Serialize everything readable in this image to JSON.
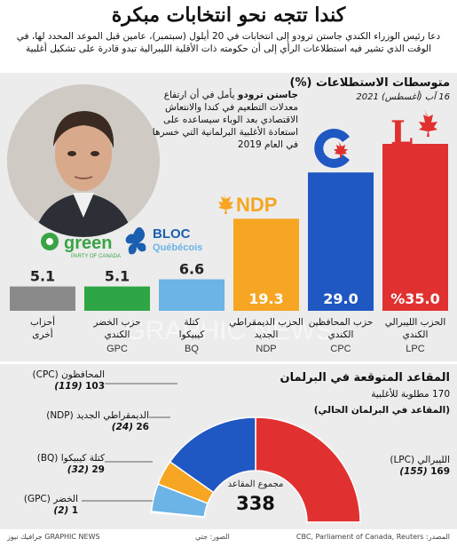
{
  "header": {
    "title": "كندا تتجه نحو انتخابات مبكرة",
    "subtitle": "دعا رئيس الوزراء الكندي جاستن ترودو إلى انتخابات في 20 أيلول (سبتمبر)، عامين قبل الموعد المحدد لها، في الوقت الذي تشير فيه استطلاعات الرأي إلى أن حكومته ذات الأقلية الليبرالية تبدو قادرة على تشكيل أغلبية"
  },
  "polls": {
    "section_title": "متوسطات الاستطلاعات (%)",
    "date_label": "16 آب (أغسطس) 2021",
    "quote_name": "جاستن ترودو",
    "quote_text": "يأمل في أن ارتفاع معدلات التطعيم في كندا والانتعاش الاقتصادي بعد الوباء سيساعده على استعادة الأغلبية البرلمانية التي خسرها في العام 2019",
    "watermark": "GRAPHIC NEWS"
  },
  "logos": {
    "ndp": "NDP",
    "bloc_line1": "BLOC",
    "bloc_line2": "Québécois",
    "green": "green",
    "green_sub": "PARTY OF CANADA",
    "lpc": "L"
  },
  "chart_data": [
    {
      "type": "bar",
      "title": "متوسطات الاستطلاعات (%)",
      "subtitle": "16 آب (أغسطس) 2021",
      "categories": [
        "LPC",
        "CPC",
        "NDP",
        "BQ",
        "GPC",
        "أحزاب أخرى"
      ],
      "category_names": [
        "الحزب الليبرالي الكندي",
        "حزب المحافظين الكندي",
        "الحزب الديمقراطي الجديد",
        "كتلة كيبيكوا",
        "حزب الخضر الكندي",
        "أحزاب أخرى"
      ],
      "category_codes": [
        "LPC",
        "CPC",
        "NDP",
        "BQ",
        "GPC",
        ""
      ],
      "value_labels": [
        "%35.0",
        "29.0",
        "19.3",
        "6.6",
        "5.1",
        "5.1"
      ],
      "values": [
        35.0,
        29.0,
        19.3,
        6.6,
        5.1,
        5.1
      ],
      "colors": [
        "#e03130",
        "#1f57c3",
        "#f6a623",
        "#6cb3e6",
        "#2ea646",
        "#8a8a8a"
      ],
      "ylim": [
        0,
        35
      ]
    },
    {
      "type": "pie",
      "title": "المقاعد المتوقعة في البرلمان",
      "subtitle": "170 مطلوبة للأغلبية",
      "legend_note": "(المقاعد في البرلمان الحالي)",
      "center_label": "مجموع المقاعد",
      "total": 338,
      "slices": [
        {
          "code": "LPC",
          "name": "الليبرالي",
          "label": "(LPC)",
          "current": "(155)",
          "value": 169,
          "color": "#e03130"
        },
        {
          "code": "CPC",
          "name": "المحافظون",
          "label": "(CPC)",
          "current": "(119)",
          "value": 103,
          "color": "#1f57c3"
        },
        {
          "code": "NDP",
          "name": "الديمقراطي الجديد",
          "label": "(NDP)",
          "current": "(24)",
          "value": 26,
          "color": "#f6a623"
        },
        {
          "code": "BQ",
          "name": "كتلة كيبيكوا",
          "label": "(BQ)",
          "current": "(32)",
          "value": 29,
          "color": "#6cb3e6"
        },
        {
          "code": "GPC",
          "name": "الخضر",
          "label": "(GPC)",
          "current": "(2)",
          "value": 1,
          "color": "#2ea646"
        }
      ]
    }
  ],
  "footer": {
    "source": "المصدر: CBC, Parliament of Canada, Reuters",
    "photo": "الصور: جتي",
    "credit": "جرافيك نيوز GRAPHIC NEWS"
  }
}
